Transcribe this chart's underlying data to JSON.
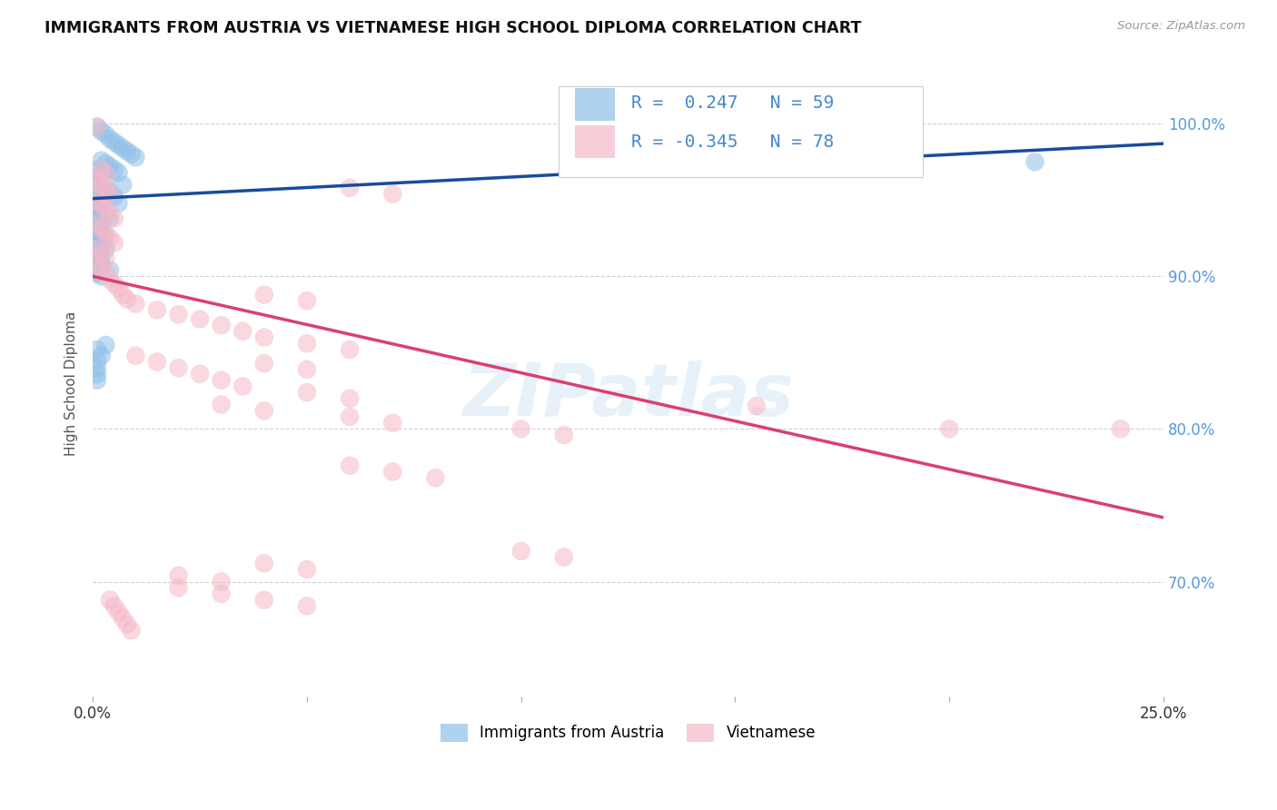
{
  "title": "IMMIGRANTS FROM AUSTRIA VS VIETNAMESE HIGH SCHOOL DIPLOMA CORRELATION CHART",
  "source": "Source: ZipAtlas.com",
  "ylabel": "High School Diploma",
  "yticks": [
    0.7,
    0.8,
    0.9,
    1.0
  ],
  "ytick_labels": [
    "70.0%",
    "80.0%",
    "90.0%",
    "100.0%"
  ],
  "xlim": [
    0.0,
    0.25
  ],
  "ylim": [
    0.625,
    1.035
  ],
  "legend_blue_label": "Immigrants from Austria",
  "legend_pink_label": "Vietnamese",
  "r_blue": 0.247,
  "n_blue": 59,
  "r_pink": -0.345,
  "n_pink": 78,
  "blue_color": "#8ec0e8",
  "pink_color": "#f5b8c8",
  "blue_line_color": "#1a4a9e",
  "pink_line_color": "#d94070",
  "watermark": "ZIPatlas",
  "blue_line_x0": 0.0,
  "blue_line_y0": 0.951,
  "blue_line_x1": 0.25,
  "blue_line_y1": 0.987,
  "pink_line_x0": 0.0,
  "pink_line_y0": 0.9,
  "pink_line_x1": 0.25,
  "pink_line_y1": 0.742,
  "blue_points": [
    [
      0.001,
      0.998
    ],
    [
      0.002,
      0.995
    ],
    [
      0.003,
      0.993
    ],
    [
      0.004,
      0.99
    ],
    [
      0.005,
      0.988
    ],
    [
      0.006,
      0.986
    ],
    [
      0.007,
      0.984
    ],
    [
      0.008,
      0.982
    ],
    [
      0.009,
      0.98
    ],
    [
      0.01,
      0.978
    ],
    [
      0.002,
      0.976
    ],
    [
      0.003,
      0.974
    ],
    [
      0.004,
      0.972
    ],
    [
      0.001,
      0.97
    ],
    [
      0.005,
      0.97
    ],
    [
      0.006,
      0.968
    ],
    [
      0.002,
      0.966
    ],
    [
      0.001,
      0.964
    ],
    [
      0.003,
      0.962
    ],
    [
      0.007,
      0.96
    ],
    [
      0.001,
      0.958
    ],
    [
      0.002,
      0.956
    ],
    [
      0.004,
      0.955
    ],
    [
      0.003,
      0.953
    ],
    [
      0.005,
      0.952
    ],
    [
      0.001,
      0.95
    ],
    [
      0.002,
      0.948
    ],
    [
      0.006,
      0.948
    ],
    [
      0.001,
      0.946
    ],
    [
      0.002,
      0.944
    ],
    [
      0.001,
      0.942
    ],
    [
      0.003,
      0.94
    ],
    [
      0.004,
      0.938
    ],
    [
      0.001,
      0.936
    ],
    [
      0.002,
      0.934
    ],
    [
      0.001,
      0.932
    ],
    [
      0.001,
      0.93
    ],
    [
      0.002,
      0.928
    ],
    [
      0.003,
      0.926
    ],
    [
      0.001,
      0.924
    ],
    [
      0.002,
      0.922
    ],
    [
      0.001,
      0.92
    ],
    [
      0.003,
      0.918
    ],
    [
      0.001,
      0.916
    ],
    [
      0.002,
      0.914
    ],
    [
      0.001,
      0.912
    ],
    [
      0.001,
      0.91
    ],
    [
      0.002,
      0.908
    ],
    [
      0.001,
      0.906
    ],
    [
      0.004,
      0.904
    ],
    [
      0.001,
      0.902
    ],
    [
      0.002,
      0.9
    ],
    [
      0.003,
      0.855
    ],
    [
      0.001,
      0.852
    ],
    [
      0.002,
      0.848
    ],
    [
      0.001,
      0.845
    ],
    [
      0.22,
      0.975
    ],
    [
      0.001,
      0.84
    ],
    [
      0.001,
      0.836
    ],
    [
      0.001,
      0.832
    ]
  ],
  "pink_points": [
    [
      0.001,
      0.998
    ],
    [
      0.002,
      0.97
    ],
    [
      0.003,
      0.967
    ],
    [
      0.001,
      0.963
    ],
    [
      0.002,
      0.96
    ],
    [
      0.003,
      0.957
    ],
    [
      0.004,
      0.954
    ],
    [
      0.001,
      0.95
    ],
    [
      0.002,
      0.947
    ],
    [
      0.003,
      0.944
    ],
    [
      0.004,
      0.941
    ],
    [
      0.005,
      0.938
    ],
    [
      0.001,
      0.934
    ],
    [
      0.002,
      0.931
    ],
    [
      0.003,
      0.928
    ],
    [
      0.004,
      0.925
    ],
    [
      0.005,
      0.922
    ],
    [
      0.001,
      0.918
    ],
    [
      0.002,
      0.915
    ],
    [
      0.003,
      0.912
    ],
    [
      0.001,
      0.908
    ],
    [
      0.002,
      0.905
    ],
    [
      0.003,
      0.902
    ],
    [
      0.06,
      0.958
    ],
    [
      0.07,
      0.954
    ],
    [
      0.004,
      0.898
    ],
    [
      0.005,
      0.895
    ],
    [
      0.006,
      0.892
    ],
    [
      0.007,
      0.888
    ],
    [
      0.008,
      0.885
    ],
    [
      0.04,
      0.888
    ],
    [
      0.05,
      0.884
    ],
    [
      0.01,
      0.882
    ],
    [
      0.015,
      0.878
    ],
    [
      0.02,
      0.875
    ],
    [
      0.025,
      0.872
    ],
    [
      0.03,
      0.868
    ],
    [
      0.035,
      0.864
    ],
    [
      0.04,
      0.86
    ],
    [
      0.05,
      0.856
    ],
    [
      0.06,
      0.852
    ],
    [
      0.04,
      0.843
    ],
    [
      0.05,
      0.839
    ],
    [
      0.01,
      0.848
    ],
    [
      0.015,
      0.844
    ],
    [
      0.02,
      0.84
    ],
    [
      0.025,
      0.836
    ],
    [
      0.03,
      0.832
    ],
    [
      0.035,
      0.828
    ],
    [
      0.05,
      0.824
    ],
    [
      0.06,
      0.82
    ],
    [
      0.03,
      0.816
    ],
    [
      0.04,
      0.812
    ],
    [
      0.155,
      0.815
    ],
    [
      0.06,
      0.808
    ],
    [
      0.07,
      0.804
    ],
    [
      0.1,
      0.8
    ],
    [
      0.11,
      0.796
    ],
    [
      0.06,
      0.776
    ],
    [
      0.07,
      0.772
    ],
    [
      0.08,
      0.768
    ],
    [
      0.2,
      0.8
    ],
    [
      0.1,
      0.72
    ],
    [
      0.11,
      0.716
    ],
    [
      0.04,
      0.712
    ],
    [
      0.05,
      0.708
    ],
    [
      0.02,
      0.704
    ],
    [
      0.03,
      0.7
    ],
    [
      0.02,
      0.696
    ],
    [
      0.03,
      0.692
    ],
    [
      0.004,
      0.688
    ],
    [
      0.005,
      0.684
    ],
    [
      0.04,
      0.688
    ],
    [
      0.05,
      0.684
    ],
    [
      0.24,
      0.8
    ],
    [
      0.006,
      0.68
    ],
    [
      0.007,
      0.676
    ],
    [
      0.008,
      0.672
    ],
    [
      0.009,
      0.668
    ]
  ]
}
